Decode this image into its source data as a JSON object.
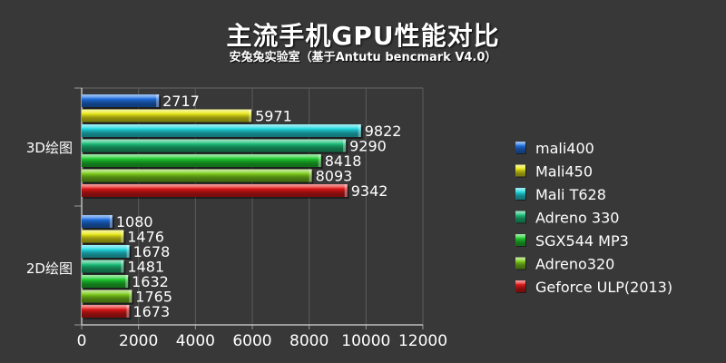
{
  "chart_data": {
    "type": "bar",
    "orientation": "horizontal",
    "title": "主流手机GPU性能对比",
    "subtitle": "安兔兔实验室（基于Antutu bencmark V4.0）",
    "categories": [
      "3D绘图",
      "2D绘图"
    ],
    "series": [
      {
        "name": "mali400",
        "color": "#1f6fe0",
        "values": [
          2717,
          1080
        ]
      },
      {
        "name": "Mali450",
        "color": "#e8e81a",
        "values": [
          5971,
          1476
        ]
      },
      {
        "name": "Mali T628",
        "color": "#22d8e0",
        "values": [
          9822,
          1678
        ]
      },
      {
        "name": "Adreno 330",
        "color": "#1dbf7a",
        "values": [
          9290,
          1481
        ]
      },
      {
        "name": "SGX544 MP3",
        "color": "#20cc30",
        "values": [
          8418,
          1632
        ]
      },
      {
        "name": "Adreno320",
        "color": "#7dcc1c",
        "values": [
          8093,
          1765
        ]
      },
      {
        "name": "Geforce ULP(2013)",
        "color": "#e01818",
        "values": [
          9342,
          1673
        ]
      }
    ],
    "xlim": [
      0,
      12000
    ],
    "xticks": [
      "0",
      "2000",
      "4000",
      "6000",
      "8000",
      "10000",
      "12000"
    ],
    "grid": true,
    "legend_position": "right"
  }
}
